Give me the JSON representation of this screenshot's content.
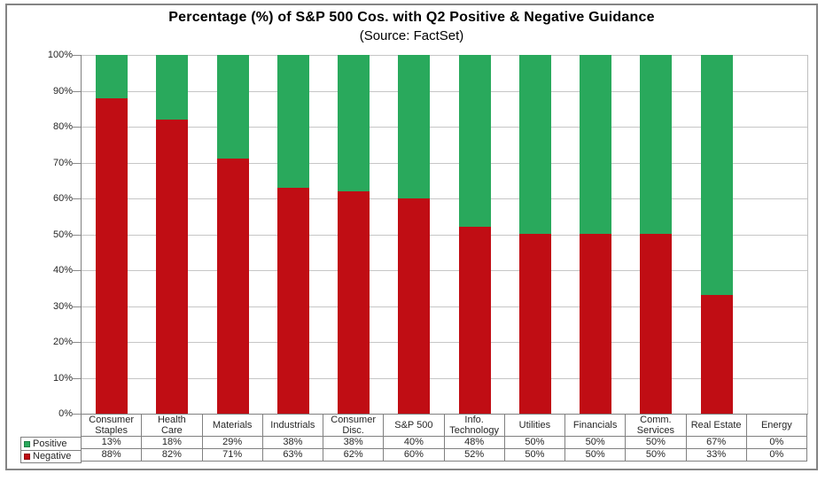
{
  "title": "Percentage (%) of S&P 500 Cos. with Q2 Positive & Negative Guidance",
  "subtitle": "(Source: FactSet)",
  "chart_data": {
    "type": "bar",
    "stacked": true,
    "orientation": "vertical",
    "title": "Percentage (%) of S&P 500 Cos. with Q2 Positive & Negative Guidance",
    "subtitle": "(Source: FactSet)",
    "categories": [
      "Consumer Staples",
      "Health Care",
      "Materials",
      "Industrials",
      "Consumer Disc.",
      "S&P 500",
      "Info. Technology",
      "Utilities",
      "Financials",
      "Comm. Services",
      "Real Estate",
      "Energy"
    ],
    "series": [
      {
        "name": "Positive",
        "color": "#29A95C",
        "values": [
          "13%",
          "18%",
          "29%",
          "38%",
          "38%",
          "40%",
          "48%",
          "50%",
          "50%",
          "50%",
          "67%",
          "0%"
        ]
      },
      {
        "name": "Negative",
        "color": "#C00D14",
        "values": [
          "88%",
          "82%",
          "71%",
          "63%",
          "62%",
          "60%",
          "52%",
          "50%",
          "50%",
          "50%",
          "33%",
          "0%"
        ]
      }
    ],
    "y_ticks": [
      "100%",
      "90%",
      "80%",
      "70%",
      "60%",
      "50%",
      "40%",
      "30%",
      "20%",
      "10%",
      "0%"
    ],
    "ylim": [
      0,
      100
    ],
    "grid": "horizontal",
    "legend_position": "left-of-data-table",
    "data_table_shown": true,
    "colors": {
      "positive": "#29A95C",
      "negative": "#C00D14",
      "gridline": "#C6C6C6",
      "axis": "#808080",
      "frame_border": "#848484",
      "background": "#FFFFFF"
    }
  }
}
